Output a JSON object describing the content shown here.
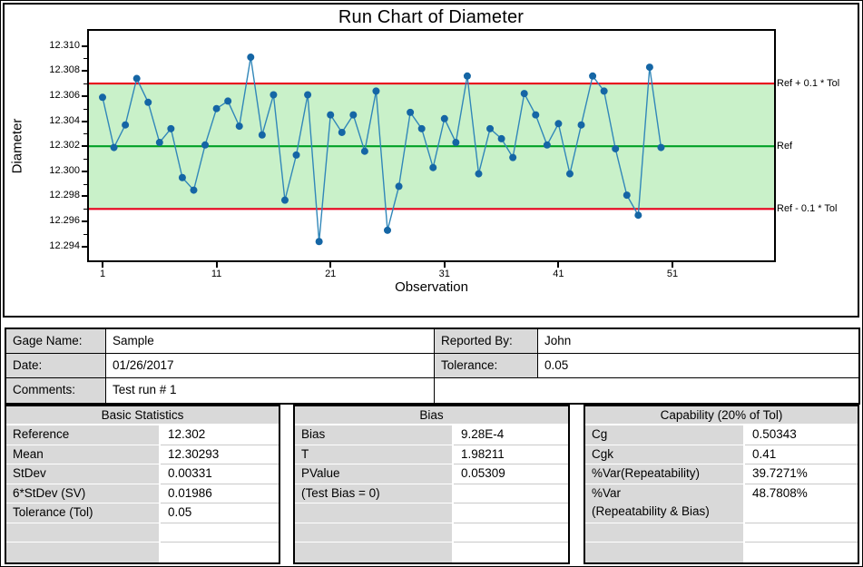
{
  "chart": {
    "title": "Run Chart of Diameter",
    "xlabel": "Observation",
    "ylabel": "Diameter",
    "y_tick_labels": [
      "12.310",
      "12.308",
      "12.306",
      "12.304",
      "12.302",
      "12.300",
      "12.298",
      "12.296",
      "12.294"
    ],
    "x_tick_labels": [
      "1",
      "11",
      "21",
      "31",
      "41",
      "51"
    ],
    "ref_line_labels": {
      "upper": "Ref + 0.1 * Tol",
      "mid": "Ref",
      "lower": "Ref - 0.1 * Tol"
    },
    "colors": {
      "marker": "#1566a5",
      "line": "#3187b9",
      "ref_limit_line": "#e8001c",
      "center_line": "#00a126",
      "band_fill": "#c9f1c9",
      "table_header_bg": "#d9d9d9"
    }
  },
  "chart_data": {
    "type": "line",
    "title": "Run Chart of Diameter",
    "xlabel": "Observation",
    "ylabel": "Diameter",
    "x": [
      1,
      2,
      3,
      4,
      5,
      6,
      7,
      8,
      9,
      10,
      11,
      12,
      13,
      14,
      15,
      16,
      17,
      18,
      19,
      20,
      21,
      22,
      23,
      24,
      25,
      26,
      27,
      28,
      29,
      30,
      31,
      32,
      33,
      34,
      35,
      36,
      37,
      38,
      39,
      40,
      41,
      42,
      43,
      44,
      45,
      46,
      47,
      48,
      49,
      50
    ],
    "values": [
      12.3059,
      12.3019,
      12.3037,
      12.3074,
      12.3055,
      12.3023,
      12.3034,
      12.2995,
      12.2985,
      12.3021,
      12.305,
      12.3056,
      12.3036,
      12.3091,
      12.3029,
      12.3061,
      12.2977,
      12.3013,
      12.3061,
      12.2944,
      12.3045,
      12.3031,
      12.3045,
      12.3016,
      12.3064,
      12.2953,
      12.2988,
      12.3047,
      12.3034,
      12.3003,
      12.3042,
      12.3023,
      12.3076,
      12.2998,
      12.3034,
      12.3026,
      12.3011,
      12.3062,
      12.3045,
      12.3021,
      12.3038,
      12.2998,
      12.3037,
      12.3076,
      12.3064,
      12.3018,
      12.2981,
      12.2965,
      12.3083,
      12.3019
    ],
    "ylim": [
      12.2929,
      12.3112
    ],
    "y_ticks": [
      12.31,
      12.308,
      12.306,
      12.304,
      12.302,
      12.3,
      12.298,
      12.296,
      12.294
    ],
    "y_minor_ticks": [
      12.309,
      12.307,
      12.305,
      12.303,
      12.301,
      12.299,
      12.297,
      12.295
    ],
    "x_ticks": [
      1,
      11,
      21,
      31,
      41,
      51
    ],
    "center_line": 12.302,
    "upper_ref": 12.307,
    "lower_ref": 12.297,
    "grid": "off",
    "legend": "none"
  },
  "info_table": {
    "rows": [
      {
        "label": "Gage Name:",
        "value": "Sample",
        "label2": "Reported By:",
        "value2": "John"
      },
      {
        "label": "Date:",
        "value": "01/26/2017",
        "label2": "Tolerance:",
        "value2": "0.05"
      },
      {
        "label": "Comments:",
        "value": "Test run # 1",
        "label2": "",
        "value2": ""
      }
    ]
  },
  "stats_tables": [
    {
      "title": "Basic Statistics",
      "rows": [
        {
          "label": "Reference",
          "value": "12.302"
        },
        {
          "label": "Mean",
          "value": "12.30293"
        },
        {
          "label": "StDev",
          "value": "0.00331"
        },
        {
          "label": "6*StDev (SV)",
          "value": "0.01986"
        },
        {
          "label": "Tolerance (Tol)",
          "value": "0.05"
        },
        {
          "label": "",
          "value": ""
        },
        {
          "label": "",
          "value": ""
        }
      ]
    },
    {
      "title": "Bias",
      "rows": [
        {
          "label": "Bias",
          "value": "9.28E-4"
        },
        {
          "label": "T",
          "value": "1.98211"
        },
        {
          "label": "PValue",
          "value": "0.05309"
        },
        {
          "label": "(Test Bias = 0)",
          "value": ""
        },
        {
          "label": "",
          "value": ""
        },
        {
          "label": "",
          "value": ""
        },
        {
          "label": "",
          "value": ""
        }
      ]
    },
    {
      "title": "Capability (20% of Tol)",
      "rows": [
        {
          "label": "Cg",
          "value": "0.50343"
        },
        {
          "label": "Cgk",
          "value": "0.41"
        },
        {
          "label": "%Var(Repeatability)",
          "value": "39.7271%"
        },
        {
          "label": "%Var\n(Repeatability & Bias)",
          "value": "48.7808%",
          "tall": true
        },
        {
          "label": "",
          "value": ""
        },
        {
          "label": "",
          "value": ""
        }
      ]
    }
  ]
}
